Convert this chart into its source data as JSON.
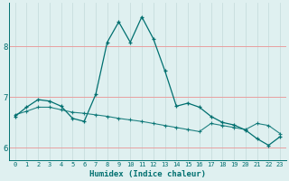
{
  "xlabel": "Humidex (Indice chaleur)",
  "background_color": "#dff0f0",
  "grid_color_v": "#c8dede",
  "grid_color_h": "#e8a0a0",
  "line_color": "#007070",
  "x_values": [
    0,
    1,
    2,
    3,
    4,
    5,
    6,
    7,
    8,
    9,
    10,
    11,
    12,
    13,
    14,
    15,
    16,
    17,
    18,
    19,
    20,
    21,
    22,
    23
  ],
  "line1_y": [
    6.62,
    6.8,
    6.95,
    6.92,
    6.82,
    6.58,
    6.52,
    7.05,
    8.08,
    8.48,
    8.08,
    8.58,
    8.15,
    7.52,
    6.82,
    6.88,
    6.8,
    6.62,
    6.5,
    6.45,
    6.35,
    6.18,
    6.05,
    6.22
  ],
  "line2_y": [
    6.65,
    6.72,
    6.8,
    6.8,
    6.75,
    6.7,
    6.68,
    6.65,
    6.62,
    6.58,
    6.55,
    6.52,
    6.48,
    6.44,
    6.4,
    6.36,
    6.32,
    6.48,
    6.44,
    6.4,
    6.36,
    6.48,
    6.44,
    6.28
  ],
  "ylim": [
    5.75,
    8.85
  ],
  "xlim": [
    -0.5,
    23.5
  ],
  "yticks": [
    6,
    7,
    8
  ],
  "xticks": [
    0,
    1,
    2,
    3,
    4,
    5,
    6,
    7,
    8,
    9,
    10,
    11,
    12,
    13,
    14,
    15,
    16,
    17,
    18,
    19,
    20,
    21,
    22,
    23
  ]
}
